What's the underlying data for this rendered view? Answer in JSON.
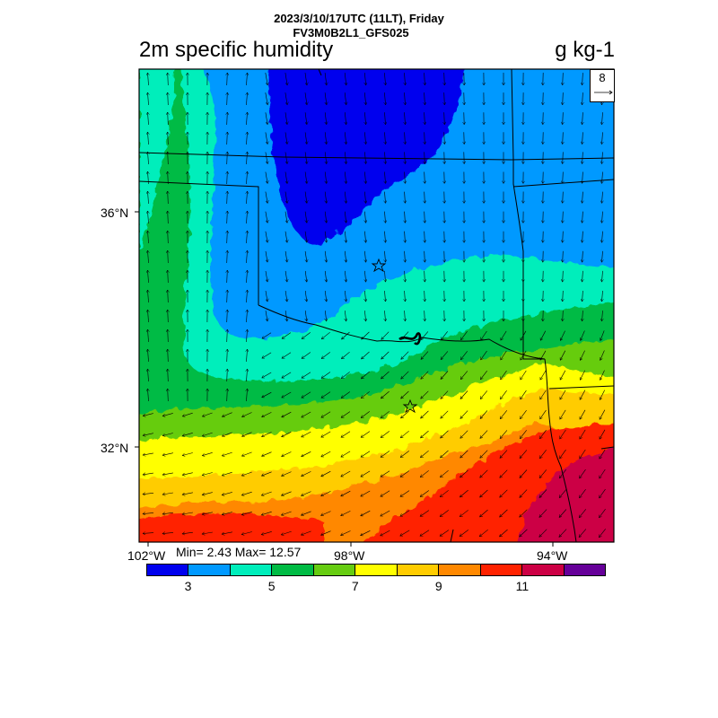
{
  "header": {
    "datetime": "2023/3/10/17UTC (11LT), Friday",
    "model": "FV3M0B2L1_GFS025",
    "variable": "2m specific humidity",
    "unit": "g kg-1"
  },
  "map": {
    "lat_labels": [
      "36°N",
      "32°N"
    ],
    "lon_labels": [
      "102°W",
      "98°W",
      "94°W"
    ],
    "stats": "Min= 2.43 Max= 12.57",
    "wind_reference": "8"
  },
  "colorbar": {
    "colors": [
      "#0000ee",
      "#0099ff",
      "#00eebb",
      "#00bb44",
      "#66cc11",
      "#ffff00",
      "#ffcc00",
      "#ff8800",
      "#ff2200",
      "#cc0044",
      "#660099"
    ],
    "labels": [
      "3",
      "5",
      "7",
      "9",
      "11"
    ]
  }
}
